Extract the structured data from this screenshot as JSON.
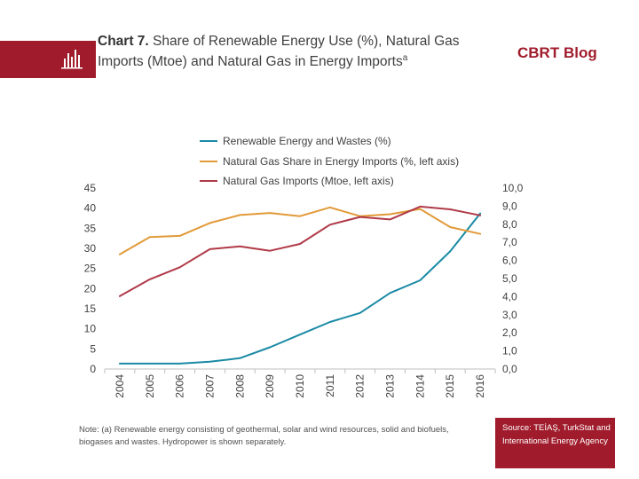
{
  "header": {
    "title_bold": "Chart 7.",
    "title_text": "Share of Renewable Energy Use (%), Natural Gas Imports (Mtoe) and Natural Gas in Energy Imports",
    "title_superscript": "a",
    "brand": "CBRT Blog",
    "icon": "bar-chart-icon"
  },
  "chart_data": {
    "type": "line",
    "x": [
      "2004",
      "2005",
      "2006",
      "2007",
      "2008",
      "2009",
      "2010",
      "2011",
      "2012",
      "2013",
      "2014",
      "2015",
      "2016"
    ],
    "left_axis": {
      "ylim": [
        0,
        45
      ],
      "ticks": [
        "0",
        "5",
        "10",
        "15",
        "20",
        "25",
        "30",
        "35",
        "40",
        "45"
      ]
    },
    "right_axis": {
      "ylim": [
        0,
        10
      ],
      "ticks": [
        "0,0",
        "1,0",
        "2,0",
        "3,0",
        "4,0",
        "5,0",
        "6,0",
        "7,0",
        "8,0",
        "9,0",
        "10,0"
      ]
    },
    "grid": false,
    "legend_position": "top",
    "series": [
      {
        "name": "Renewable Energy and Wastes (%)",
        "color": "#1a8aa5",
        "axis": "right",
        "values": [
          0.3,
          0.3,
          0.3,
          0.4,
          0.6,
          1.2,
          1.9,
          2.6,
          3.1,
          4.2,
          4.9,
          6.5,
          8.6
        ]
      },
      {
        "name": "Natural Gas Share in Energy Imports (%, left axis)",
        "color": "#e19a38",
        "axis": "left",
        "values": [
          28.5,
          32.8,
          33.1,
          36.3,
          38.3,
          38.8,
          38.0,
          40.2,
          38.0,
          38.5,
          39.8,
          35.3,
          33.6
        ]
      },
      {
        "name": "Natural Gas Imports (Mtoe, left axis)",
        "color": "#b03a48",
        "axis": "left",
        "values": [
          18.1,
          22.3,
          25.3,
          29.8,
          30.5,
          29.4,
          31.1,
          35.9,
          37.8,
          37.2,
          40.4,
          39.7,
          38.2
        ]
      }
    ]
  },
  "footer": {
    "note": "Note: (a) Renewable energy consisting of geothermal, solar and wind resources, solid and biofuels, biogases and wastes. Hydropower is shown separately.",
    "source": "Source: TEİAŞ, TurkStat and International Energy Agency"
  }
}
